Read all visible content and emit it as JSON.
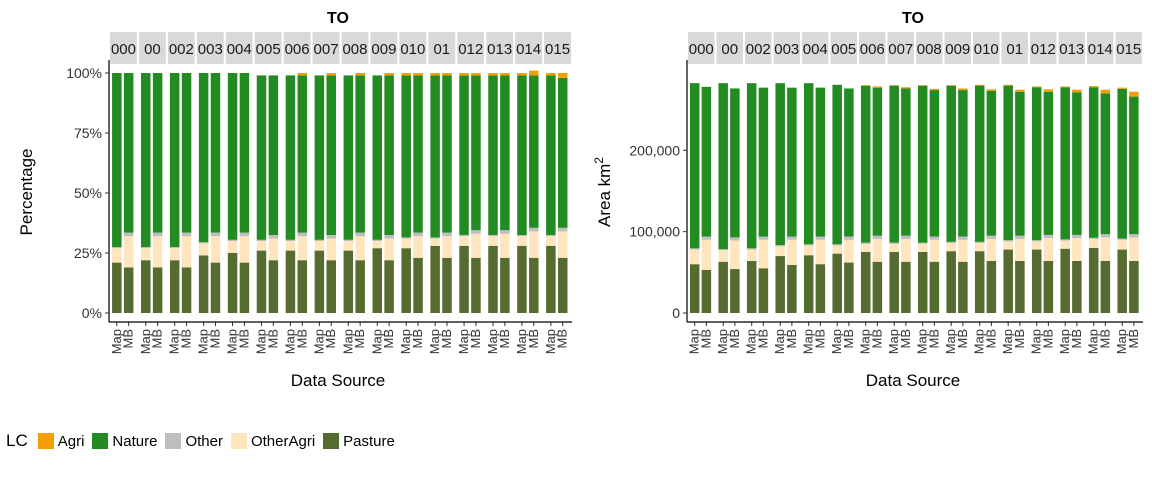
{
  "legend": {
    "title": "LC",
    "items": [
      {
        "label": "Agri",
        "color": "#F59E08"
      },
      {
        "label": "Nature",
        "color": "#228B22"
      },
      {
        "label": "Other",
        "color": "#BEBEBE"
      },
      {
        "label": "OtherAgri",
        "color": "#FFE5BE"
      },
      {
        "label": "Pasture",
        "color": "#556B2F"
      }
    ]
  },
  "chart_data": [
    {
      "type": "bar",
      "stacked": true,
      "title": "TO",
      "xlabel": "Data Source",
      "ylabel": "Percentage",
      "ylim": [
        0,
        1
      ],
      "yticks": [
        {
          "value": 0,
          "label": "0%"
        },
        {
          "value": 0.25,
          "label": "25%"
        },
        {
          "value": 0.5,
          "label": "50%"
        },
        {
          "value": 0.75,
          "label": "75%"
        },
        {
          "value": 1,
          "label": "100%"
        }
      ],
      "facets": [
        "000",
        "00",
        "002",
        "003",
        "004",
        "005",
        "006",
        "007",
        "008",
        "009",
        "010",
        "01",
        "012",
        "013",
        "014",
        "015"
      ],
      "categories": [
        "Map",
        "MB"
      ],
      "stack_order": [
        "Pasture",
        "OtherAgri",
        "Other",
        "Nature",
        "Agri"
      ],
      "series": [
        {
          "name": "Pasture",
          "values": [
            [
              0.21,
              0.19
            ],
            [
              0.22,
              0.19
            ],
            [
              0.22,
              0.19
            ],
            [
              0.24,
              0.21
            ],
            [
              0.25,
              0.21
            ],
            [
              0.26,
              0.22
            ],
            [
              0.26,
              0.22
            ],
            [
              0.26,
              0.22
            ],
            [
              0.26,
              0.22
            ],
            [
              0.27,
              0.22
            ],
            [
              0.27,
              0.23
            ],
            [
              0.28,
              0.23
            ],
            [
              0.28,
              0.23
            ],
            [
              0.28,
              0.23
            ],
            [
              0.28,
              0.23
            ],
            [
              0.28,
              0.23
            ]
          ]
        },
        {
          "name": "OtherAgri",
          "values": [
            [
              0.06,
              0.13
            ],
            [
              0.05,
              0.13
            ],
            [
              0.05,
              0.13
            ],
            [
              0.05,
              0.11
            ],
            [
              0.05,
              0.11
            ],
            [
              0.04,
              0.09
            ],
            [
              0.04,
              0.1
            ],
            [
              0.04,
              0.09
            ],
            [
              0.04,
              0.1
            ],
            [
              0.03,
              0.09
            ],
            [
              0.04,
              0.09
            ],
            [
              0.03,
              0.09
            ],
            [
              0.04,
              0.1
            ],
            [
              0.04,
              0.1
            ],
            [
              0.04,
              0.11
            ],
            [
              0.04,
              0.11
            ]
          ]
        },
        {
          "name": "Other",
          "values": [
            [
              0.005,
              0.015
            ],
            [
              0.005,
              0.015
            ],
            [
              0.005,
              0.015
            ],
            [
              0.005,
              0.015
            ],
            [
              0.005,
              0.015
            ],
            [
              0.005,
              0.015
            ],
            [
              0.005,
              0.015
            ],
            [
              0.005,
              0.015
            ],
            [
              0.005,
              0.015
            ],
            [
              0.005,
              0.015
            ],
            [
              0.005,
              0.015
            ],
            [
              0.005,
              0.015
            ],
            [
              0.005,
              0.015
            ],
            [
              0.005,
              0.015
            ],
            [
              0.005,
              0.015
            ],
            [
              0.005,
              0.015
            ]
          ]
        },
        {
          "name": "Nature",
          "values": [
            [
              0.725,
              0.665
            ],
            [
              0.725,
              0.665
            ],
            [
              0.725,
              0.665
            ],
            [
              0.705,
              0.665
            ],
            [
              0.695,
              0.665
            ],
            [
              0.685,
              0.665
            ],
            [
              0.685,
              0.655
            ],
            [
              0.685,
              0.665
            ],
            [
              0.685,
              0.655
            ],
            [
              0.685,
              0.665
            ],
            [
              0.675,
              0.655
            ],
            [
              0.675,
              0.655
            ],
            [
              0.665,
              0.645
            ],
            [
              0.665,
              0.645
            ],
            [
              0.665,
              0.635
            ],
            [
              0.665,
              0.625
            ]
          ]
        },
        {
          "name": "Agri",
          "values": [
            [
              0,
              0
            ],
            [
              0,
              0
            ],
            [
              0,
              0
            ],
            [
              0,
              0
            ],
            [
              0,
              0
            ],
            [
              0,
              0
            ],
            [
              0,
              0.01
            ],
            [
              0,
              0.01
            ],
            [
              0,
              0.01
            ],
            [
              0,
              0.01
            ],
            [
              0.01,
              0.01
            ],
            [
              0.01,
              0.01
            ],
            [
              0.01,
              0.01
            ],
            [
              0.01,
              0.01
            ],
            [
              0.01,
              0.02
            ],
            [
              0.01,
              0.02
            ]
          ]
        }
      ]
    },
    {
      "type": "bar",
      "stacked": true,
      "title": "TO",
      "xlabel": "Data Source",
      "ylabel": "Area km",
      "ylabel_superscript": "2",
      "ylim": [
        0,
        295000
      ],
      "yticks": [
        {
          "value": 0,
          "label": "0"
        },
        {
          "value": 100000,
          "label": "100,000"
        },
        {
          "value": 200000,
          "label": "200,000"
        }
      ],
      "facets": [
        "000",
        "00",
        "002",
        "003",
        "004",
        "005",
        "006",
        "007",
        "008",
        "009",
        "010",
        "01",
        "012",
        "013",
        "014",
        "015"
      ],
      "categories": [
        "Map",
        "MB"
      ],
      "stack_order": [
        "Pasture",
        "OtherAgri",
        "Other",
        "Nature",
        "Agri"
      ],
      "series": [
        {
          "name": "Pasture",
          "values": [
            [
              60000,
              53000
            ],
            [
              63000,
              54000
            ],
            [
              64000,
              55000
            ],
            [
              70000,
              59000
            ],
            [
              71000,
              60000
            ],
            [
              73000,
              62000
            ],
            [
              75000,
              63000
            ],
            [
              75000,
              63000
            ],
            [
              75000,
              63000
            ],
            [
              76000,
              63000
            ],
            [
              76000,
              64000
            ],
            [
              78000,
              64000
            ],
            [
              78000,
              64000
            ],
            [
              79000,
              64000
            ],
            [
              80000,
              64000
            ],
            [
              78000,
              64000
            ]
          ]
        },
        {
          "name": "OtherAgri",
          "values": [
            [
              18000,
              37000
            ],
            [
              14000,
              35000
            ],
            [
              14000,
              35000
            ],
            [
              12000,
              31000
            ],
            [
              12000,
              30000
            ],
            [
              10000,
              28000
            ],
            [
              10000,
              28000
            ],
            [
              10000,
              28000
            ],
            [
              10000,
              27000
            ],
            [
              10000,
              27000
            ],
            [
              10000,
              27000
            ],
            [
              10000,
              27000
            ],
            [
              10000,
              28000
            ],
            [
              10000,
              28000
            ],
            [
              11000,
              29000
            ],
            [
              12000,
              29000
            ]
          ]
        },
        {
          "name": "Other",
          "values": [
            [
              1500,
              4000
            ],
            [
              1500,
              4000
            ],
            [
              1500,
              4000
            ],
            [
              1500,
              4000
            ],
            [
              1500,
              4000
            ],
            [
              1500,
              4000
            ],
            [
              1500,
              4000
            ],
            [
              1500,
              4000
            ],
            [
              1500,
              4000
            ],
            [
              1500,
              4000
            ],
            [
              1500,
              4000
            ],
            [
              1500,
              4000
            ],
            [
              1500,
              4000
            ],
            [
              1500,
              4000
            ],
            [
              1500,
              4000
            ],
            [
              1500,
              4000
            ]
          ]
        },
        {
          "name": "Nature",
          "values": [
            [
              203000,
              184000
            ],
            [
              204000,
              183000
            ],
            [
              203000,
              183000
            ],
            [
              199000,
              183000
            ],
            [
              198000,
              183000
            ],
            [
              196000,
              182000
            ],
            [
              193000,
              182000
            ],
            [
              193000,
              181000
            ],
            [
              193000,
              180000
            ],
            [
              192000,
              180000
            ],
            [
              192000,
              178000
            ],
            [
              190000,
              177000
            ],
            [
              188000,
              176000
            ],
            [
              187000,
              175000
            ],
            [
              185000,
              173000
            ],
            [
              184000,
              169000
            ]
          ]
        },
        {
          "name": "Agri",
          "values": [
            [
              0,
              0
            ],
            [
              0,
              0
            ],
            [
              0,
              0
            ],
            [
              0,
              0
            ],
            [
              0,
              0
            ],
            [
              0,
              0
            ],
            [
              500,
              1500
            ],
            [
              500,
              1500
            ],
            [
              500,
              1500
            ],
            [
              500,
              2000
            ],
            [
              1000,
              2000
            ],
            [
              1000,
              2500
            ],
            [
              1000,
              3000
            ],
            [
              1000,
              3500
            ],
            [
              1500,
              4500
            ],
            [
              1500,
              6000
            ]
          ]
        }
      ]
    }
  ]
}
